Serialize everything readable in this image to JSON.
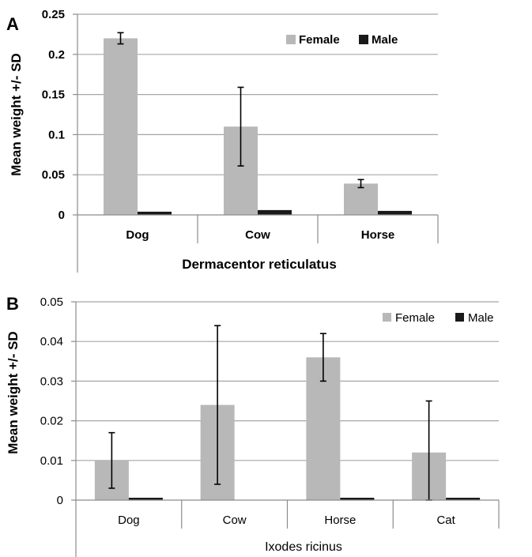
{
  "chart_data": [
    {
      "type": "bar",
      "panel": "A",
      "ylabel": "Mean weight +/- SD",
      "xlabel": "Dermacentor reticulatus",
      "categories": [
        "Dog",
        "Cow",
        "Horse"
      ],
      "ylim": [
        0,
        0.25
      ],
      "yticks": [
        0,
        0.05,
        0.1,
        0.15,
        0.2,
        0.25
      ],
      "ytick_labels": [
        "0",
        "0.05",
        "0.1",
        "0.15",
        "0.2",
        "0.25"
      ],
      "grid": true,
      "legend": "top-right",
      "series": [
        {
          "name": "Female",
          "color": "#b8b8b8",
          "values": [
            0.22,
            0.11,
            0.039
          ],
          "sd": [
            0.007,
            0.049,
            0.005
          ]
        },
        {
          "name": "Male",
          "color": "#1a1a1a",
          "values": [
            0.004,
            0.006,
            0.005
          ],
          "sd": [
            0,
            0,
            0
          ]
        }
      ]
    },
    {
      "type": "bar",
      "panel": "B",
      "ylabel": "Mean weight +/- SD",
      "xlabel": "Ixodes ricinus",
      "categories": [
        "Dog",
        "Cow",
        "Horse",
        "Cat"
      ],
      "ylim": [
        0,
        0.05
      ],
      "yticks": [
        0,
        0.01,
        0.02,
        0.03,
        0.04,
        0.05
      ],
      "ytick_labels": [
        "0",
        "0.01",
        "0.02",
        "0.03",
        "0.04",
        "0.05"
      ],
      "grid": true,
      "legend": "top-right",
      "series": [
        {
          "name": "Female",
          "color": "#b8b8b8",
          "values": [
            0.01,
            0.024,
            0.036,
            0.012
          ],
          "sd": [
            0.007,
            0.02,
            0.006,
            0.013
          ]
        },
        {
          "name": "Male",
          "color": "#1a1a1a",
          "values": [
            0.0004,
            0,
            0.0004,
            0.0003
          ],
          "sd": [
            0,
            0,
            0,
            0
          ]
        }
      ]
    }
  ]
}
